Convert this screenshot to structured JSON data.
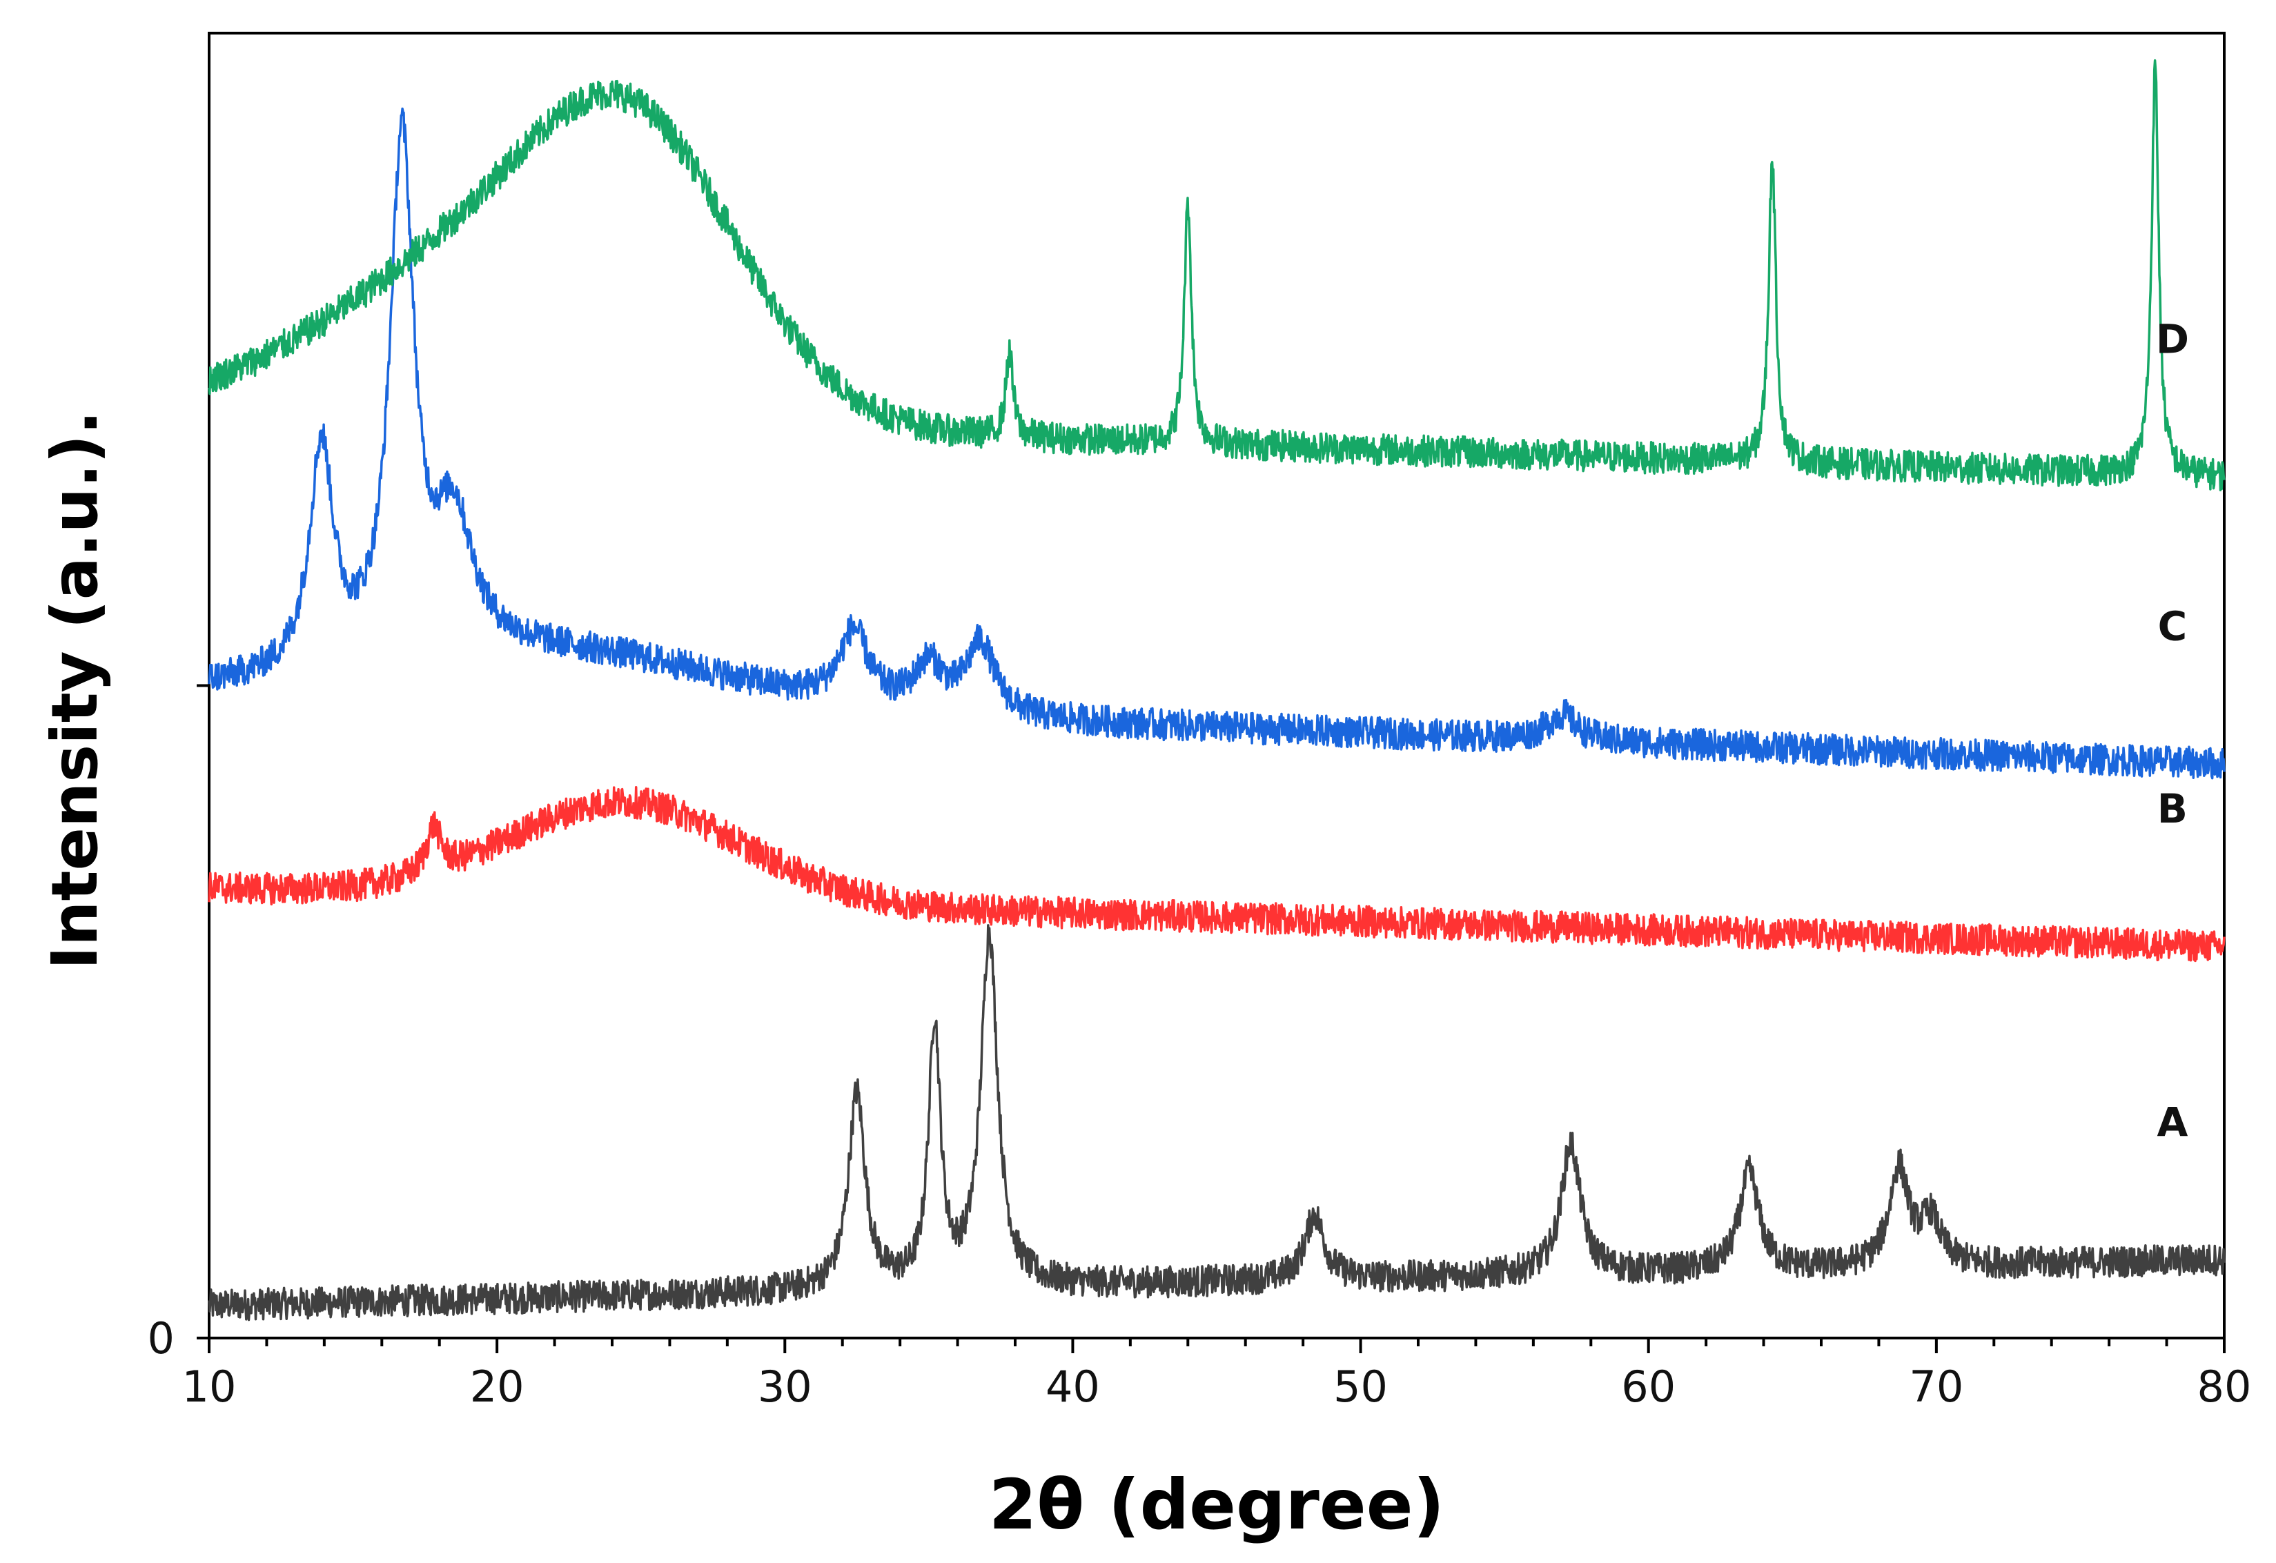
{
  "chart_data": {
    "type": "line",
    "title": "",
    "xlabel": "2θ (degree)",
    "ylabel": "Intensity (a.u.).",
    "xlim": [
      10,
      80
    ],
    "ylim": [
      0,
      10
    ],
    "x_ticks": [
      "10",
      "20",
      "30",
      "40",
      "50",
      "60",
      "70",
      "80"
    ],
    "y_ticks": [
      "0"
    ],
    "grid": false,
    "noise_amplitude": 0.12,
    "series": [
      {
        "name": "A",
        "label": "A",
        "color": "#404040",
        "base_start": 0.25,
        "base_end": 0.6,
        "peaks": [
          [
            32.5,
            1.5,
            0.35
          ],
          [
            35.2,
            2.0,
            0.25
          ],
          [
            37.1,
            2.7,
            0.35
          ],
          [
            48.4,
            0.5,
            0.4
          ],
          [
            57.3,
            1.0,
            0.4
          ],
          [
            63.5,
            0.75,
            0.4
          ],
          [
            68.7,
            0.75,
            0.4
          ],
          [
            69.8,
            0.35,
            0.4
          ]
        ],
        "broad": []
      },
      {
        "name": "B",
        "label": "B",
        "color": "#ff3333",
        "base_start": 3.45,
        "base_end": 3.0,
        "peaks": [
          [
            17.8,
            0.35,
            0.3
          ]
        ],
        "broad": [
          [
            24.5,
            0.75,
            4.0
          ]
        ]
      },
      {
        "name": "C",
        "label": "C",
        "color": "#1a66dd",
        "base_start": 4.95,
        "base_end": 4.4,
        "peaks": [
          [
            13.9,
            1.7,
            0.5
          ],
          [
            16.7,
            3.95,
            0.5
          ],
          [
            18.5,
            1.0,
            0.8
          ],
          [
            32.4,
            0.55,
            0.6
          ],
          [
            35.0,
            0.35,
            0.6
          ],
          [
            36.8,
            0.55,
            0.6
          ],
          [
            57.0,
            0.2,
            0.6
          ]
        ],
        "broad": [
          [
            22.0,
            0.4,
            6.0
          ]
        ]
      },
      {
        "name": "D",
        "label": "D",
        "color": "#16a866",
        "base_start": 7.1,
        "base_end": 6.6,
        "peaks": [
          [
            37.8,
            0.65,
            0.15
          ],
          [
            44.0,
            1.85,
            0.15
          ],
          [
            64.3,
            2.35,
            0.15
          ],
          [
            77.6,
            3.1,
            0.15
          ]
        ],
        "broad": [
          [
            20.0,
            1.3,
            5.5
          ],
          [
            25.0,
            1.6,
            3.5
          ]
        ]
      }
    ]
  }
}
